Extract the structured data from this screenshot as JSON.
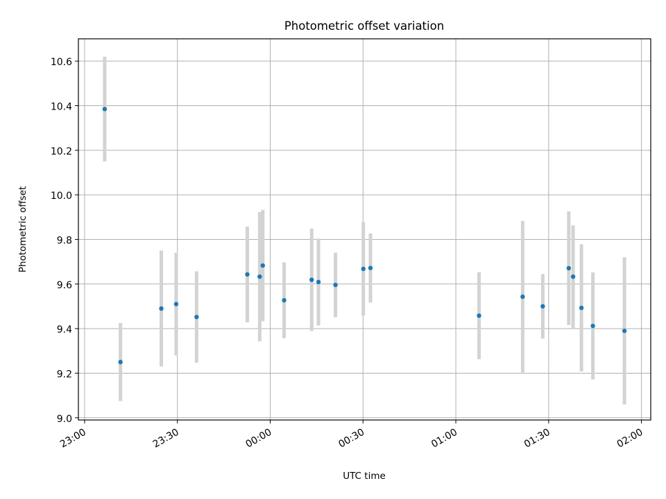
{
  "chart_data": {
    "type": "scatter",
    "title": "Photometric offset variation",
    "xlabel": "UTC time",
    "ylabel": "Photometric offset",
    "xlim": [
      "22:58",
      "02:03"
    ],
    "ylim": [
      8.99,
      10.7
    ],
    "yticks": [
      9.0,
      9.2,
      9.4,
      9.6,
      9.8,
      10.0,
      10.2,
      10.4,
      10.6
    ],
    "xticks": [
      "23:00",
      "23:30",
      "00:00",
      "00:30",
      "01:00",
      "01:30",
      "02:00"
    ],
    "grid": true,
    "point_color": "#1f77b4",
    "errorbar_color": "#d3d3d3",
    "points": [
      {
        "x": "23:06.5",
        "y": 10.385,
        "err": 0.235
      },
      {
        "x": "23:11.6",
        "y": 9.25,
        "err": 0.175
      },
      {
        "x": "23:24.8",
        "y": 9.49,
        "err": 0.26
      },
      {
        "x": "23:29.6",
        "y": 9.51,
        "err": 0.23
      },
      {
        "x": "23:36.2",
        "y": 9.452,
        "err": 0.205
      },
      {
        "x": "23:52.6",
        "y": 9.643,
        "err": 0.215
      },
      {
        "x": "23:56.6",
        "y": 9.633,
        "err": 0.29
      },
      {
        "x": "23:57.6",
        "y": 9.683,
        "err": 0.25
      },
      {
        "x": "00:04.5",
        "y": 9.527,
        "err": 0.17
      },
      {
        "x": "00:13.4",
        "y": 9.619,
        "err": 0.23
      },
      {
        "x": "00:15.6",
        "y": 9.609,
        "err": 0.195
      },
      {
        "x": "00:21.1",
        "y": 9.596,
        "err": 0.145
      },
      {
        "x": "00:30.1",
        "y": 9.668,
        "err": 0.21
      },
      {
        "x": "00:32.4",
        "y": 9.672,
        "err": 0.155
      },
      {
        "x": "01:07.5",
        "y": 9.458,
        "err": 0.195
      },
      {
        "x": "01:21.6",
        "y": 9.543,
        "err": 0.34
      },
      {
        "x": "01:28.1",
        "y": 9.5,
        "err": 0.145
      },
      {
        "x": "01:36.5",
        "y": 9.671,
        "err": 0.255
      },
      {
        "x": "01:37.9",
        "y": 9.633,
        "err": 0.23
      },
      {
        "x": "01:40.6",
        "y": 9.493,
        "err": 0.285
      },
      {
        "x": "01:44.3",
        "y": 9.412,
        "err": 0.24
      },
      {
        "x": "01:54.5",
        "y": 9.39,
        "err": 0.33
      }
    ]
  }
}
